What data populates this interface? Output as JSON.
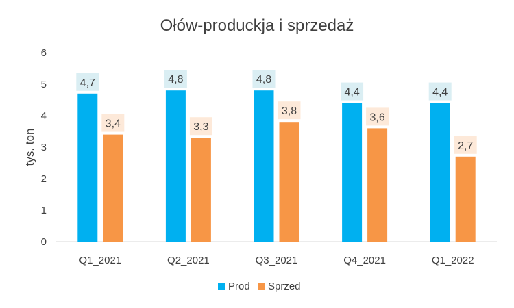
{
  "chart_data": {
    "type": "bar",
    "title": "Ołów-produckja  i sprzedaż",
    "xlabel": "",
    "ylabel": "tys. ton",
    "categories": [
      "Q1_2021",
      "Q2_2021",
      "Q3_2021",
      "Q4_2021",
      "Q1_2022"
    ],
    "series": [
      {
        "name": "Prod",
        "values": [
          4.7,
          4.8,
          4.8,
          4.4,
          4.4
        ],
        "labels": [
          "4,7",
          "4,8",
          "4,8",
          "4,4",
          "4,4"
        ],
        "color": "#00B0F0",
        "label_bg": "#DAEEF3"
      },
      {
        "name": "Sprzed",
        "values": [
          3.4,
          3.3,
          3.8,
          3.6,
          2.7
        ],
        "labels": [
          "3,4",
          "3,3",
          "3,8",
          "3,6",
          "2,7"
        ],
        "color": "#F79646",
        "label_bg": "#FDE9D9"
      }
    ],
    "ylim": [
      0,
      6
    ],
    "yticks": [
      0,
      1,
      2,
      3,
      4,
      5,
      6
    ],
    "grid": false,
    "legend_position": "bottom"
  }
}
